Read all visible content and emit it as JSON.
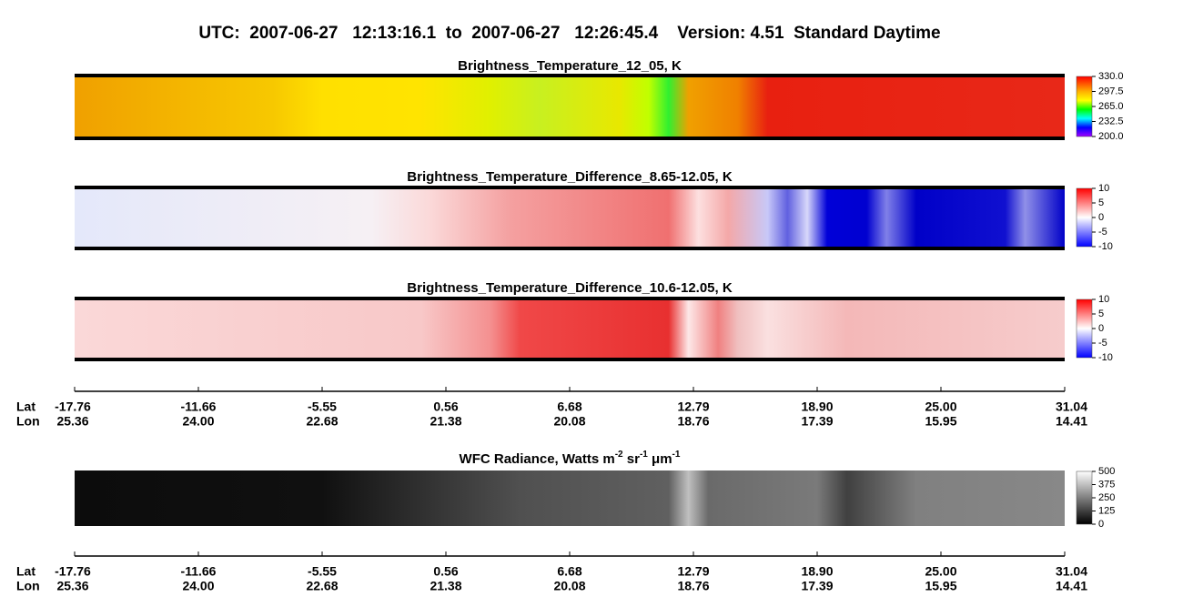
{
  "header": {
    "title": "UTC:  2007-06-27   12:13:16.1  to  2007-06-27   12:26:45.4    Version: 4.51  Standard Daytime"
  },
  "panels": [
    {
      "title": "Brightness_Temperature_12_05, K",
      "colorbar_labels": [
        "330.0",
        "297.5",
        "265.0",
        "232.5",
        "200.0"
      ]
    },
    {
      "title": "Brightness_Temperature_Difference_8.65-12.05, K",
      "colorbar_labels": [
        "10",
        "5",
        "0",
        "-5",
        "-10"
      ]
    },
    {
      "title": "Brightness_Temperature_Difference_10.6-12.05, K",
      "colorbar_labels": [
        "10",
        "5",
        "0",
        "-5",
        "-10"
      ]
    },
    {
      "title_parts": [
        "WFC Radiance, Watts m",
        "-2",
        " sr",
        "-1",
        " μm",
        "-1"
      ],
      "colorbar_labels": [
        "500",
        "375",
        "250",
        "125",
        "0"
      ]
    }
  ],
  "axes": [
    {
      "lat_label": "Lat",
      "lon_label": "Lon",
      "lat": [
        "-17.76",
        "-11.66",
        "-5.55",
        "0.56",
        "6.68",
        "12.79",
        "18.90",
        "25.00",
        "31.04"
      ],
      "lon": [
        "25.36",
        "24.00",
        "22.68",
        "21.38",
        "20.08",
        "18.76",
        "17.39",
        "15.95",
        "14.41"
      ]
    },
    {
      "lat_label": "Lat",
      "lon_label": "Lon",
      "lat": [
        "-17.76",
        "-11.66",
        "-5.55",
        "0.56",
        "6.68",
        "12.79",
        "18.90",
        "25.00",
        "31.04"
      ],
      "lon": [
        "25.36",
        "24.00",
        "22.68",
        "21.38",
        "20.08",
        "18.76",
        "17.39",
        "15.95",
        "14.41"
      ]
    }
  ]
}
